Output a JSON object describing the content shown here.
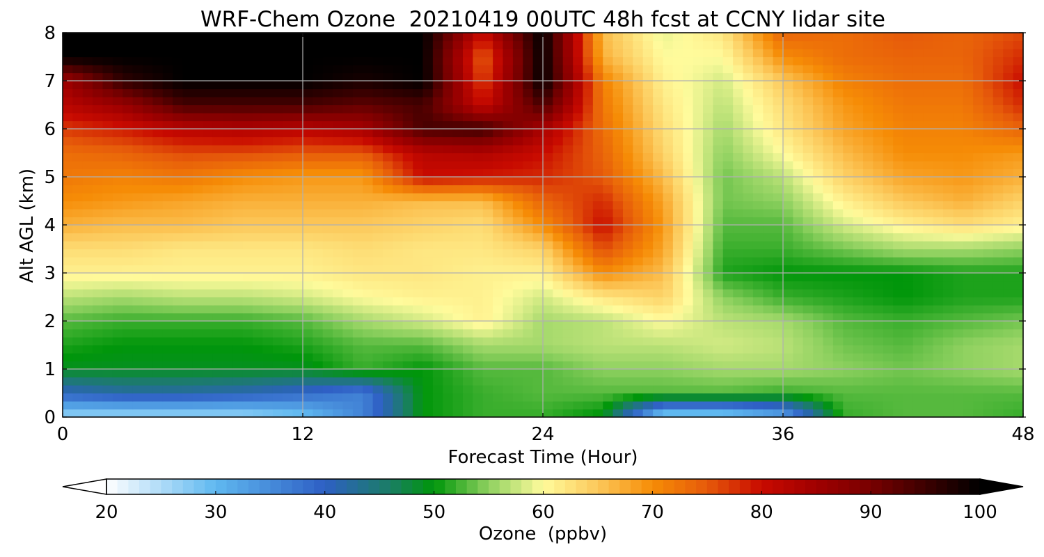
{
  "chart_data": {
    "type": "heatmap",
    "title": "WRF-Chem Ozone  20210419 00UTC 48h fcst at CCNY lidar site",
    "xlabel": "Forecast Time (Hour)",
    "ylabel": "Alt AGL (km)",
    "xlim": [
      0,
      48
    ],
    "ylim": [
      0,
      8
    ],
    "xticks": [
      0,
      12,
      24,
      36,
      48
    ],
    "yticks": [
      0,
      1,
      2,
      3,
      4,
      5,
      6,
      7,
      8
    ],
    "grid": true,
    "x": [
      0,
      3,
      6,
      9,
      12,
      15,
      18,
      21,
      24,
      27,
      30,
      33,
      36,
      39,
      42,
      45,
      48
    ],
    "y": [
      0.1,
      0.5,
      1,
      1.5,
      2,
      2.5,
      3,
      3.5,
      4,
      4.5,
      5,
      5.5,
      6,
      6.5,
      7,
      7.5,
      8
    ],
    "z": [
      [
        28,
        28,
        28,
        28,
        30,
        36,
        50,
        52,
        52,
        50,
        30,
        30,
        34,
        52,
        53,
        53,
        52
      ],
      [
        40,
        42,
        42,
        41,
        39,
        36,
        50,
        52,
        53,
        53,
        53,
        53,
        52,
        53,
        53,
        53,
        53
      ],
      [
        49,
        49,
        49,
        49,
        49,
        52,
        50,
        53,
        53,
        55,
        55,
        56,
        56,
        55,
        54,
        55,
        56
      ],
      [
        51,
        50,
        50,
        50,
        51,
        53,
        53,
        56,
        56,
        57,
        57,
        58,
        57,
        54,
        53,
        55,
        56
      ],
      [
        53,
        52,
        52,
        52,
        53,
        56,
        58,
        61,
        56,
        57,
        60,
        57,
        56,
        53,
        52,
        53,
        54
      ],
      [
        57,
        56,
        57,
        57,
        58,
        60,
        61,
        61,
        58,
        62,
        64,
        55,
        52,
        51,
        50,
        51,
        51
      ],
      [
        61,
        61,
        61,
        61,
        61,
        62,
        62,
        61,
        61,
        70,
        66,
        51,
        50,
        50,
        50,
        51,
        51
      ],
      [
        63,
        63,
        62,
        62,
        62,
        63,
        62,
        62,
        64,
        76,
        68,
        52,
        52,
        54,
        56,
        56,
        55
      ],
      [
        67,
        66,
        66,
        65,
        65,
        65,
        64,
        63,
        70,
        80,
        69,
        53,
        53,
        58,
        61,
        63,
        61
      ],
      [
        70,
        69,
        68,
        67,
        67,
        67,
        66,
        66,
        74,
        78,
        68,
        54,
        55,
        61,
        65,
        67,
        64
      ],
      [
        72,
        71,
        72,
        70,
        69,
        69,
        80,
        79,
        78,
        75,
        66,
        54,
        57,
        64,
        68,
        69,
        67
      ],
      [
        73,
        74,
        76,
        76,
        75,
        75,
        82,
        83,
        80,
        74,
        64,
        55,
        60,
        66,
        70,
        70,
        69
      ],
      [
        77,
        79,
        82,
        83,
        82,
        84,
        94,
        95,
        84,
        73,
        63,
        56,
        62,
        68,
        71,
        71,
        74
      ],
      [
        82,
        86,
        94,
        94,
        94,
        92,
        94,
        80,
        94,
        72,
        62,
        57,
        63,
        69,
        72,
        72,
        78
      ],
      [
        85,
        96,
        100,
        100,
        100,
        98,
        100,
        76,
        100,
        71,
        61,
        58,
        65,
        71,
        73,
        73,
        80
      ],
      [
        100,
        100,
        100,
        100,
        100,
        100,
        100,
        74,
        100,
        67,
        60,
        60,
        70,
        73,
        74,
        74,
        78
      ],
      [
        100,
        100,
        100,
        100,
        100,
        100,
        100,
        80,
        100,
        66,
        59,
        62,
        74,
        73,
        75,
        74,
        76
      ]
    ],
    "colorbar": {
      "label": "Ozone  (ppbv)",
      "min": 20,
      "max": 100,
      "ticks": [
        20,
        30,
        40,
        50,
        60,
        70,
        80,
        90,
        100
      ],
      "extend": "both",
      "colors": [
        {
          "v": 20,
          "c": "#ffffff"
        },
        {
          "v": 30,
          "c": "#5fb8f0"
        },
        {
          "v": 40,
          "c": "#2e5fc4"
        },
        {
          "v": 46,
          "c": "#1a7e64"
        },
        {
          "v": 50,
          "c": "#00960a"
        },
        {
          "v": 55,
          "c": "#8fd160"
        },
        {
          "v": 60,
          "c": "#fffb9c"
        },
        {
          "v": 65,
          "c": "#fcc85a"
        },
        {
          "v": 70,
          "c": "#f68c06"
        },
        {
          "v": 75,
          "c": "#e65a0a"
        },
        {
          "v": 80,
          "c": "#c80a00"
        },
        {
          "v": 85,
          "c": "#a00000"
        },
        {
          "v": 90,
          "c": "#780000"
        },
        {
          "v": 95,
          "c": "#3c0000"
        },
        {
          "v": 100,
          "c": "#000000"
        }
      ]
    }
  }
}
